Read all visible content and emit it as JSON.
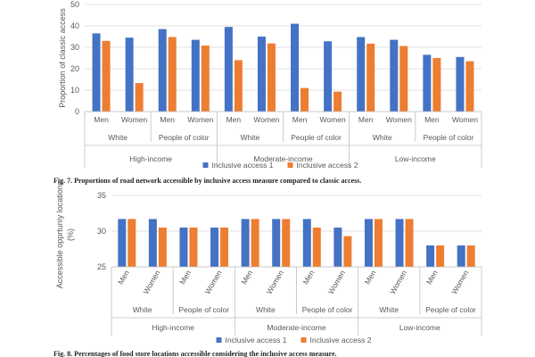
{
  "colors": {
    "series1": "#4472C4",
    "series2": "#ED7D31"
  },
  "chart_data": [
    {
      "type": "bar",
      "ylabel": "Proportion of classic access",
      "ylim": [
        0,
        50
      ],
      "yticks": [
        0,
        10,
        20,
        30,
        40,
        50
      ],
      "gender_labels": [
        "Men",
        "Women",
        "Men",
        "Women",
        "Men",
        "Women",
        "Men",
        "Women",
        "Men",
        "Women",
        "Men",
        "Women"
      ],
      "race_labels": [
        "White",
        "People of color",
        "White",
        "People of color",
        "White",
        "People of color"
      ],
      "income_labels": [
        "High-income",
        "Moderate-income",
        "Low-income"
      ],
      "series": [
        {
          "name": "Inclusive access 1",
          "values": [
            36.5,
            34.5,
            38.5,
            33.5,
            39.5,
            35,
            41,
            32.8,
            34.8,
            33.5,
            26.5,
            25.5
          ]
        },
        {
          "name": "Inclusive access 2",
          "values": [
            33,
            13.3,
            34.8,
            30.8,
            24,
            31.8,
            11,
            9.3,
            31.7,
            30.6,
            25,
            23.5
          ]
        }
      ],
      "caption": "Fig. 7. Proportions of road network accessible by inclusive access measure compared to classic access."
    },
    {
      "type": "bar",
      "ylabel_line1": "Accessible opprtuniy locations",
      "ylabel_line2": "(%)",
      "ylim": [
        25,
        35
      ],
      "yticks": [
        25,
        30,
        35
      ],
      "gender_labels": [
        "Men",
        "Women",
        "Men",
        "Women",
        "Men",
        "Women",
        "Men",
        "Women",
        "Men",
        "Women",
        "Men",
        "Women"
      ],
      "race_labels": [
        "White",
        "People of color",
        "White",
        "People of color",
        "White",
        "People of color"
      ],
      "income_labels": [
        "High-income",
        "Moderate-income",
        "Low-income"
      ],
      "series": [
        {
          "name": "Inclusive access 1",
          "values": [
            31.7,
            31.7,
            30.5,
            30.5,
            31.7,
            31.7,
            31.7,
            30.5,
            31.7,
            31.7,
            28,
            28
          ]
        },
        {
          "name": "Inclusive access 2",
          "values": [
            31.7,
            30.5,
            30.5,
            30.5,
            31.7,
            31.7,
            30.5,
            29.3,
            31.7,
            31.7,
            28,
            28
          ]
        }
      ],
      "caption": "Fig. 8. Percentages of food store locations accessible considering the inclusive access measure."
    }
  ]
}
